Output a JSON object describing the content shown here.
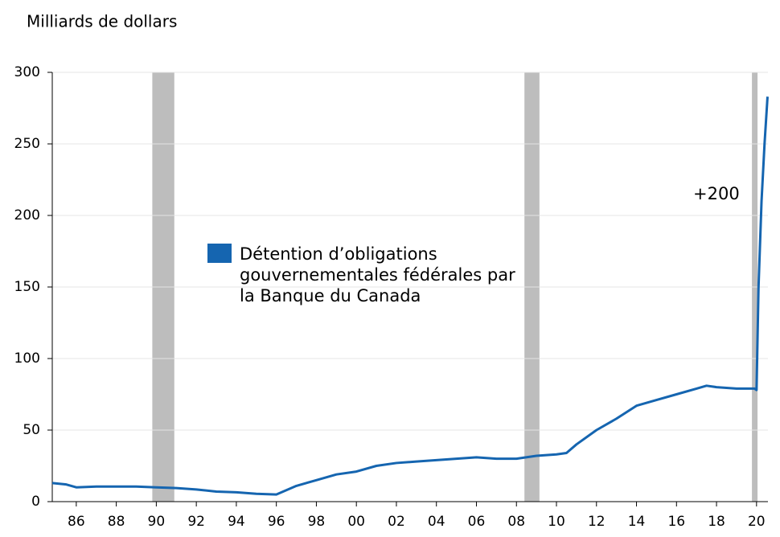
{
  "chart_data": {
    "type": "line",
    "y_axis_label": "Milliards de dollars",
    "annotation": "+200",
    "xlim": [
      1984.8,
      2020.57
    ],
    "ylim": [
      0,
      300
    ],
    "yticks": [
      0,
      50,
      100,
      150,
      200,
      250,
      300
    ],
    "xticks": [
      {
        "value": 1986,
        "label": "86"
      },
      {
        "value": 1988,
        "label": "88"
      },
      {
        "value": 1990,
        "label": "90"
      },
      {
        "value": 1992,
        "label": "92"
      },
      {
        "value": 1994,
        "label": "94"
      },
      {
        "value": 1996,
        "label": "96"
      },
      {
        "value": 1998,
        "label": "98"
      },
      {
        "value": 2000,
        "label": "00"
      },
      {
        "value": 2002,
        "label": "02"
      },
      {
        "value": 2004,
        "label": "04"
      },
      {
        "value": 2006,
        "label": "06"
      },
      {
        "value": 2008,
        "label": "08"
      },
      {
        "value": 2010,
        "label": "10"
      },
      {
        "value": 2012,
        "label": "12"
      },
      {
        "value": 2014,
        "label": "14"
      },
      {
        "value": 2016,
        "label": "16"
      },
      {
        "value": 2018,
        "label": "18"
      },
      {
        "value": 2020,
        "label": "20"
      }
    ],
    "grid": true,
    "recessions": [
      [
        1989.8,
        1990.9
      ],
      [
        2008.4,
        2009.15
      ],
      [
        2019.77,
        2020.05
      ]
    ],
    "recession_color": "#bdbdbd",
    "x": [
      1984.8,
      1985.5,
      1986,
      1987,
      1988,
      1989,
      1990,
      1991,
      1992,
      1993,
      1994,
      1995,
      1996,
      1996.5,
      1997,
      1998,
      1999,
      2000,
      2001,
      2002,
      2003,
      2004,
      2005,
      2006,
      2007,
      2008,
      2009,
      2010,
      2010.5,
      2011,
      2012,
      2013,
      2014,
      2015,
      2016,
      2017,
      2017.5,
      2018,
      2019,
      2019.9,
      2020.0,
      2020.1,
      2020.25,
      2020.4,
      2020.55
    ],
    "series": [
      {
        "name": "Détention d’obligations gouvernementales fédérales par la Banque du Canada",
        "color": "#1565b0",
        "values": [
          13,
          12,
          10,
          10.5,
          10.5,
          10.5,
          10,
          9.5,
          8.5,
          7,
          6.5,
          5.5,
          5,
          8,
          11,
          15,
          19,
          21,
          25,
          27,
          28,
          29,
          30,
          31,
          30,
          30,
          32,
          33,
          34,
          40,
          50,
          58,
          67,
          71,
          75,
          79,
          81,
          80,
          79,
          79,
          78,
          150,
          210,
          250,
          283
        ]
      }
    ]
  }
}
